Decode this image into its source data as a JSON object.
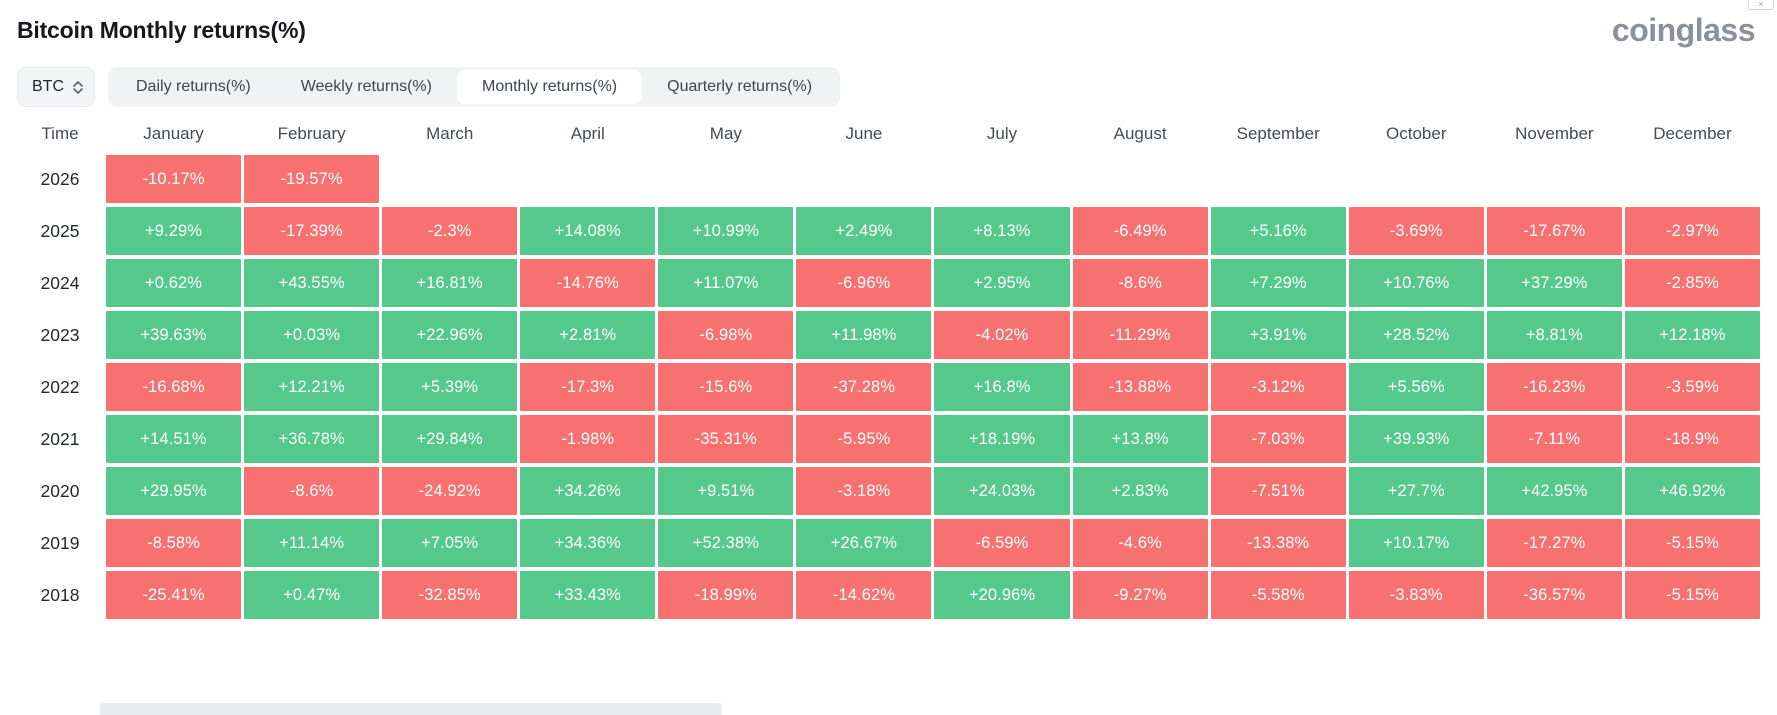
{
  "header": {
    "title": "Bitcoin Monthly returns(%)",
    "brand": "coinglass"
  },
  "controls": {
    "symbol": "BTC",
    "tabs": [
      {
        "label": "Daily returns(%)",
        "active": false
      },
      {
        "label": "Weekly returns(%)",
        "active": false
      },
      {
        "label": "Monthly returns(%)",
        "active": true
      },
      {
        "label": "Quarterly returns(%)",
        "active": false
      }
    ]
  },
  "chart_data": {
    "type": "heatmap",
    "title": "Bitcoin Monthly returns(%)",
    "unit": "percent",
    "columns": [
      "Time",
      "January",
      "February",
      "March",
      "April",
      "May",
      "June",
      "July",
      "August",
      "September",
      "October",
      "November",
      "December"
    ],
    "colors": {
      "positive": "#55c88c",
      "negative": "#f77171",
      "text": "#ffffff"
    },
    "rows": [
      {
        "year": "2026",
        "values": [
          "-10.17%",
          "-19.57%",
          "",
          "",
          "",
          "",
          "",
          "",
          "",
          "",
          "",
          ""
        ]
      },
      {
        "year": "2025",
        "values": [
          "+9.29%",
          "-17.39%",
          "-2.3%",
          "+14.08%",
          "+10.99%",
          "+2.49%",
          "+8.13%",
          "-6.49%",
          "+5.16%",
          "-3.69%",
          "-17.67%",
          "-2.97%"
        ]
      },
      {
        "year": "2024",
        "values": [
          "+0.62%",
          "+43.55%",
          "+16.81%",
          "-14.76%",
          "+11.07%",
          "-6.96%",
          "+2.95%",
          "-8.6%",
          "+7.29%",
          "+10.76%",
          "+37.29%",
          "-2.85%"
        ]
      },
      {
        "year": "2023",
        "values": [
          "+39.63%",
          "+0.03%",
          "+22.96%",
          "+2.81%",
          "-6.98%",
          "+11.98%",
          "-4.02%",
          "-11.29%",
          "+3.91%",
          "+28.52%",
          "+8.81%",
          "+12.18%"
        ]
      },
      {
        "year": "2022",
        "values": [
          "-16.68%",
          "+12.21%",
          "+5.39%",
          "-17.3%",
          "-15.6%",
          "-37.28%",
          "+16.8%",
          "-13.88%",
          "-3.12%",
          "+5.56%",
          "-16.23%",
          "-3.59%"
        ]
      },
      {
        "year": "2021",
        "values": [
          "+14.51%",
          "+36.78%",
          "+29.84%",
          "-1.98%",
          "-35.31%",
          "-5.95%",
          "+18.19%",
          "+13.8%",
          "-7.03%",
          "+39.93%",
          "-7.11%",
          "-18.9%"
        ]
      },
      {
        "year": "2020",
        "values": [
          "+29.95%",
          "-8.6%",
          "-24.92%",
          "+34.26%",
          "+9.51%",
          "-3.18%",
          "+24.03%",
          "+2.83%",
          "-7.51%",
          "+27.7%",
          "+42.95%",
          "+46.92%"
        ]
      },
      {
        "year": "2019",
        "values": [
          "-8.58%",
          "+11.14%",
          "+7.05%",
          "+34.36%",
          "+52.38%",
          "+26.67%",
          "-6.59%",
          "-4.6%",
          "-13.38%",
          "+10.17%",
          "-17.27%",
          "-5.15%"
        ]
      },
      {
        "year": "2018",
        "values": [
          "-25.41%",
          "+0.47%",
          "-32.85%",
          "+33.43%",
          "-18.99%",
          "-14.62%",
          "+20.96%",
          "-9.27%",
          "-5.58%",
          "-3.83%",
          "-36.57%",
          "-5.15%"
        ]
      }
    ]
  }
}
